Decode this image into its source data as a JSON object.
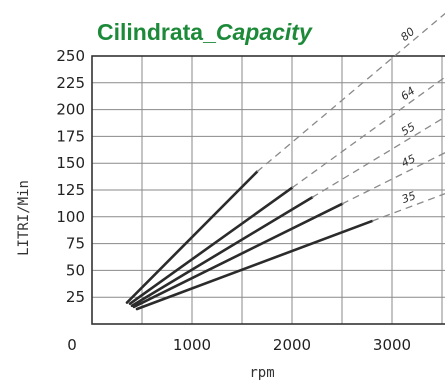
{
  "chart_data": {
    "type": "line",
    "title_main": "Cilindrata_",
    "title_italic": "Capacity",
    "xlabel": "rpm",
    "ylabel": "LITRI/Min",
    "xlim": [
      0,
      3500
    ],
    "ylim": [
      0,
      250
    ],
    "x_ticks": [
      0,
      1000,
      2000,
      3000
    ],
    "y_ticks": [
      25,
      50,
      75,
      100,
      125,
      150,
      175,
      200,
      225,
      250
    ],
    "grid": true,
    "series": [
      {
        "name": "80",
        "solid": [
          [
            350,
            20
          ],
          [
            1650,
            142
          ]
        ],
        "dashed": [
          [
            1650,
            142
          ],
          [
            3600,
            295
          ]
        ]
      },
      {
        "name": "64",
        "solid": [
          [
            380,
            19
          ],
          [
            2000,
            127
          ]
        ],
        "dashed": [
          [
            2000,
            127
          ],
          [
            3600,
            235
          ]
        ]
      },
      {
        "name": "55",
        "solid": [
          [
            400,
            17
          ],
          [
            2200,
            118
          ]
        ],
        "dashed": [
          [
            2200,
            118
          ],
          [
            3600,
            197
          ]
        ]
      },
      {
        "name": "45",
        "solid": [
          [
            420,
            16
          ],
          [
            2500,
            112
          ]
        ],
        "dashed": [
          [
            2500,
            112
          ],
          [
            3600,
            163
          ]
        ]
      },
      {
        "name": "35",
        "solid": [
          [
            450,
            14
          ],
          [
            2800,
            96
          ]
        ],
        "dashed": [
          [
            2800,
            96
          ],
          [
            3600,
            124
          ]
        ]
      }
    ]
  }
}
